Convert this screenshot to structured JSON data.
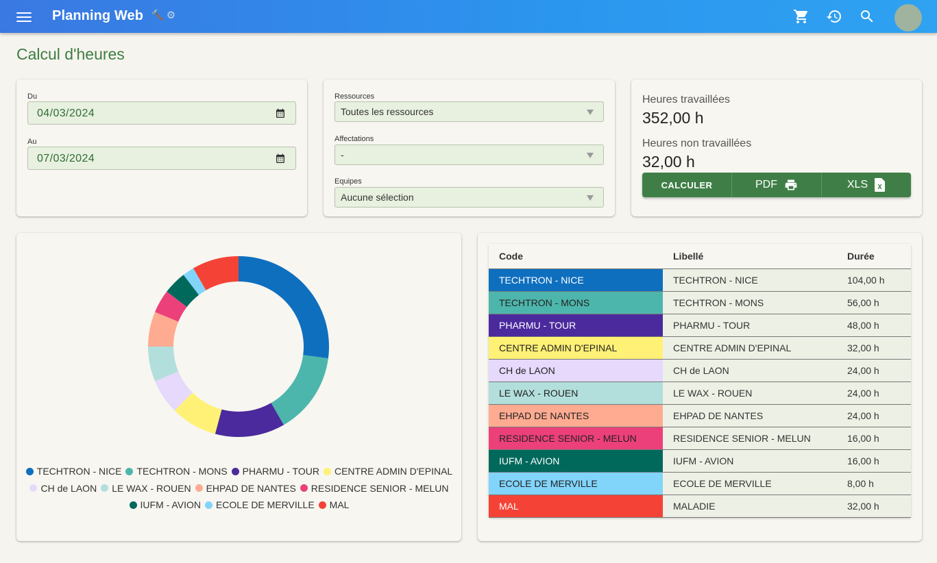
{
  "app": {
    "title": "Planning Web",
    "tool_icons": [
      "🔨",
      "⚙"
    ]
  },
  "header_icons": [
    "cart-icon",
    "history-icon",
    "search-icon"
  ],
  "page": {
    "title": "Calcul d'heures"
  },
  "dates": {
    "from_label": "Du",
    "from_value": "04/03/2024",
    "to_label": "Au",
    "to_value": "07/03/2024"
  },
  "filters": {
    "resources_label": "Ressources",
    "resources_value": "Toutes les ressources",
    "affectations_label": "Affectations",
    "affectations_value": "-",
    "teams_label": "Equipes",
    "teams_value": "Aucune sélection"
  },
  "stats": {
    "worked_label": "Heures travaillées",
    "worked_value": "352,00 h",
    "not_worked_label": "Heures non travaillées",
    "not_worked_value": "32,00 h"
  },
  "actions": {
    "calculate": "CALCULER",
    "pdf": "PDF",
    "xls": "XLS"
  },
  "table": {
    "headers": [
      "Code",
      "Libellé",
      "Durée"
    ],
    "rows": [
      {
        "code": "TECHTRON - NICE",
        "label": "TECHTRON - NICE",
        "duration": "104,00 h",
        "color": "#0f6fbf",
        "text": "#ffffff"
      },
      {
        "code": "TECHTRON - MONS",
        "label": "TECHTRON - MONS",
        "duration": "56,00 h",
        "color": "#4db6ac",
        "text": "#222222"
      },
      {
        "code": "PHARMU - TOUR",
        "label": "PHARMU - TOUR",
        "duration": "48,00 h",
        "color": "#4a2a9d",
        "text": "#ffffff"
      },
      {
        "code": "CENTRE ADMIN D'EPINAL",
        "label": "CENTRE ADMIN D'EPINAL",
        "duration": "32,00 h",
        "color": "#fff176",
        "text": "#222222"
      },
      {
        "code": "CH de LAON",
        "label": "CH de LAON",
        "duration": "24,00 h",
        "color": "#e6d9fb",
        "text": "#222222"
      },
      {
        "code": "LE WAX - ROUEN",
        "label": "LE WAX - ROUEN",
        "duration": "24,00 h",
        "color": "#b2dfdb",
        "text": "#222222"
      },
      {
        "code": "EHPAD DE NANTES",
        "label": "EHPAD DE NANTES",
        "duration": "24,00 h",
        "color": "#ffab91",
        "text": "#222222"
      },
      {
        "code": "RESIDENCE SENIOR - MELUN",
        "label": "RESIDENCE SENIOR - MELUN",
        "duration": "16,00 h",
        "color": "#ec407a",
        "text": "#222222"
      },
      {
        "code": "IUFM - AVION",
        "label": "IUFM - AVION",
        "duration": "16,00 h",
        "color": "#00695c",
        "text": "#ffffff"
      },
      {
        "code": "ECOLE DE MERVILLE",
        "label": "ECOLE DE MERVILLE",
        "duration": "8,00 h",
        "color": "#81d4fa",
        "text": "#222222"
      },
      {
        "code": "MAL",
        "label": "MALADIE",
        "duration": "32,00 h",
        "color": "#f44336",
        "text": "#ffffff"
      }
    ]
  },
  "chart_data": {
    "type": "pie",
    "variant": "donut",
    "categories": [
      "TECHTRON - NICE",
      "TECHTRON - MONS",
      "PHARMU - TOUR",
      "CENTRE ADMIN D'EPINAL",
      "CH de LAON",
      "LE WAX - ROUEN",
      "EHPAD DE NANTES",
      "RESIDENCE SENIOR - MELUN",
      "IUFM - AVION",
      "ECOLE DE MERVILLE",
      "MAL"
    ],
    "values": [
      104,
      56,
      48,
      32,
      24,
      24,
      24,
      16,
      16,
      8,
      32
    ],
    "colors": [
      "#0f6fbf",
      "#4db6ac",
      "#4a2a9d",
      "#fff176",
      "#e6d9fb",
      "#b2dfdb",
      "#ffab91",
      "#ec407a",
      "#00695c",
      "#81d4fa",
      "#f44336"
    ],
    "legend": "bottom"
  }
}
